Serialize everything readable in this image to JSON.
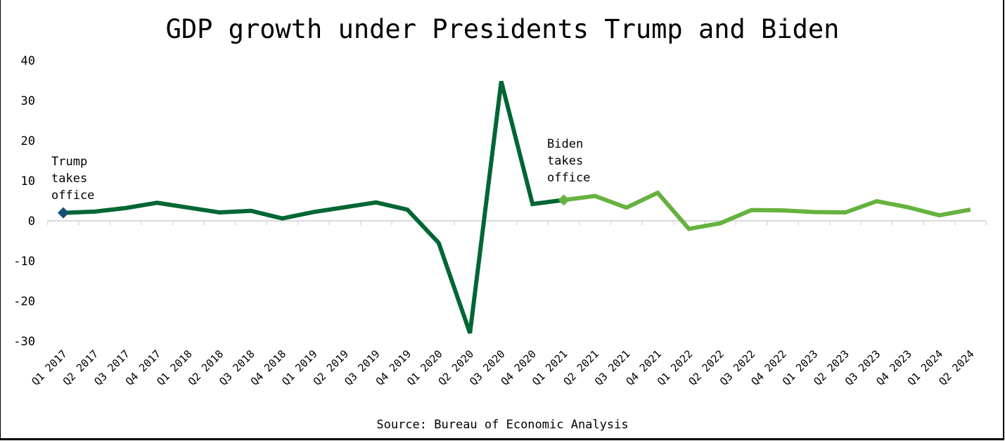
{
  "title": "GDP growth under Presidents Trump and Biden",
  "source": "Source: Bureau of Economic Analysis",
  "colors": {
    "trump_line": "#006633",
    "biden_line": "#66b23f",
    "trump_marker": "#124f71",
    "biden_marker": "#66b23f",
    "axis": "#d9d9d9"
  },
  "annotations": [
    {
      "text_lines": [
        "Trump",
        "takes",
        "office"
      ],
      "at": "Q1 2017"
    },
    {
      "text_lines": [
        "Biden",
        "takes",
        "office"
      ],
      "at": "Q1 2021"
    }
  ],
  "chart_data": {
    "type": "line",
    "title": "GDP growth under Presidents Trump and Biden",
    "xlabel": "",
    "ylabel": "",
    "ylim": [
      -30,
      40
    ],
    "yticks": [
      40,
      30,
      20,
      10,
      0,
      -10,
      -20,
      -30
    ],
    "grid": false,
    "legend": "none",
    "categories": [
      "Q1 2017",
      "Q2 2017",
      "Q3 2017",
      "Q4 2017",
      "Q1 2018",
      "Q2 2018",
      "Q3 2018",
      "Q4 2018",
      "Q1 2019",
      "Q2 2019",
      "Q3 2019",
      "Q4 2019",
      "Q1 2020",
      "Q2 2020",
      "Q3 2020",
      "Q4 2020",
      "Q1 2021",
      "Q2 2021",
      "Q3 2021",
      "Q4 2021",
      "Q1 2022",
      "Q2 2022",
      "Q3 2022",
      "Q4 2022",
      "Q1 2023",
      "Q2 2023",
      "Q3 2023",
      "Q4 2023",
      "Q1 2024",
      "Q2 2024"
    ],
    "series": [
      {
        "name": "Trump",
        "color": "#006633",
        "start_index": 0,
        "values": [
          2.0,
          2.3,
          3.2,
          4.5,
          3.3,
          2.1,
          2.5,
          0.6,
          2.2,
          3.4,
          4.6,
          2.8,
          -5.5,
          -28.0,
          34.8,
          4.2,
          5.2
        ]
      },
      {
        "name": "Biden",
        "color": "#66b23f",
        "start_index": 16,
        "values": [
          5.2,
          6.2,
          3.3,
          7.0,
          -2.0,
          -0.6,
          2.7,
          2.6,
          2.2,
          2.1,
          4.9,
          3.4,
          1.4,
          2.8
        ]
      }
    ],
    "annotations": [
      {
        "text": "Trump takes office",
        "x": "Q1 2017"
      },
      {
        "text": "Biden takes office",
        "x": "Q1 2021"
      }
    ]
  }
}
